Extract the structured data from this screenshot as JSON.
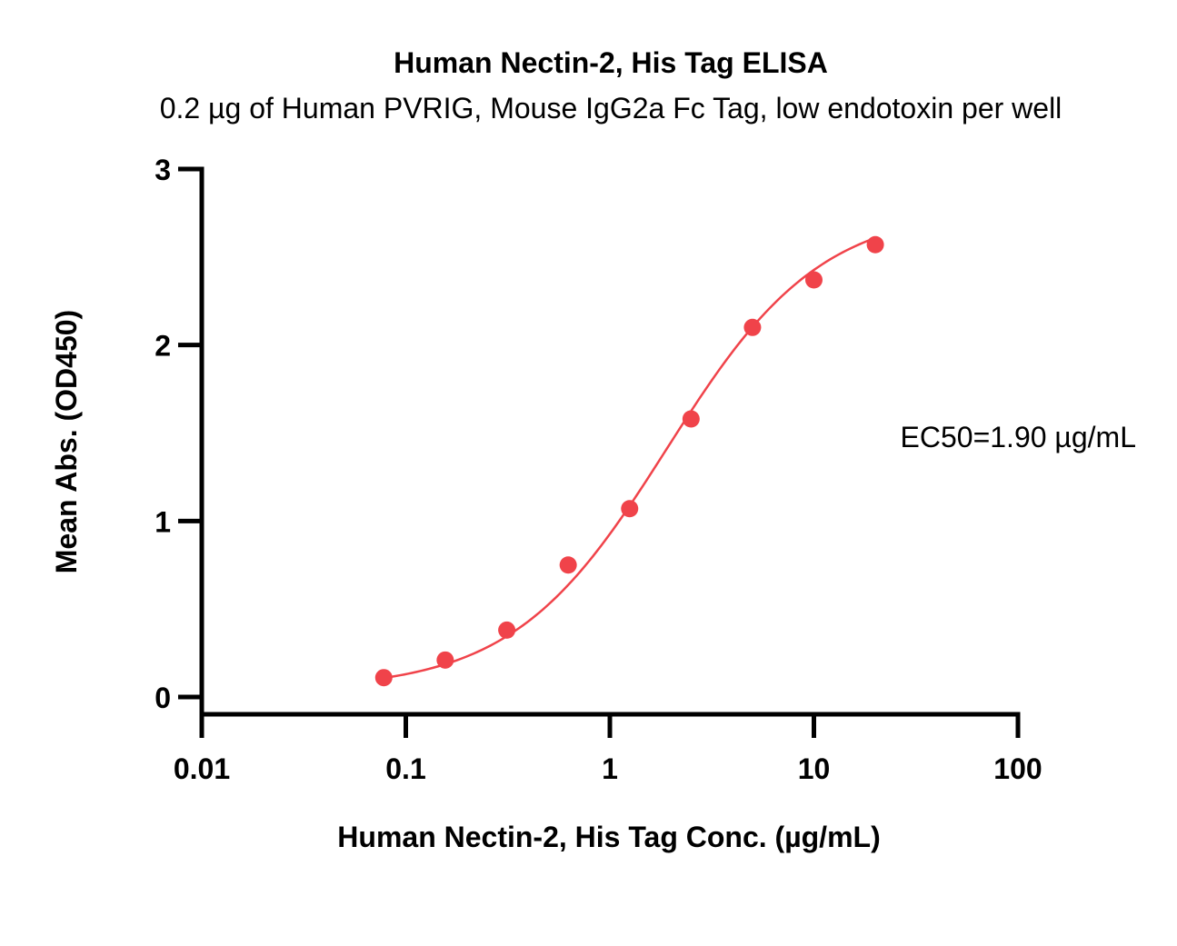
{
  "chart_data": {
    "type": "scatter",
    "title": "Human Nectin-2, His Tag ELISA",
    "subtitle": "0.2 µg of Human PVRIG, Mouse IgG2a Fc Tag, low endotoxin per well",
    "xlabel": "Human Nectin-2, His Tag Conc. (µg/mL)",
    "ylabel": "Mean Abs. (OD450)",
    "xscale": "log",
    "xlim": [
      0.01,
      100
    ],
    "ylim": [
      0,
      3
    ],
    "xticks": [
      0.01,
      0.1,
      1,
      10,
      100
    ],
    "xtick_labels": [
      "0.01",
      "0.1",
      "1",
      "10",
      "100"
    ],
    "yticks": [
      0,
      1,
      2,
      3
    ],
    "ytick_labels": [
      "0",
      "1",
      "2",
      "3"
    ],
    "grid": false,
    "color": "#f0434a",
    "series": [
      {
        "x": [
          0.078,
          0.156,
          0.3125,
          0.625,
          1.25,
          2.5,
          5,
          10,
          20
        ],
        "y": [
          0.11,
          0.21,
          0.38,
          0.75,
          1.07,
          1.58,
          2.1,
          2.37,
          2.57
        ]
      }
    ],
    "fit": {
      "model": "4PL",
      "bottom": 0.04,
      "top": 2.78,
      "ec50": 1.9,
      "hill": 1.15
    },
    "annotation": "EC50=1.90 µg/mL"
  }
}
